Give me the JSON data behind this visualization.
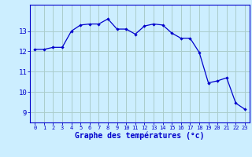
{
  "hours": [
    0,
    1,
    2,
    3,
    4,
    5,
    6,
    7,
    8,
    9,
    10,
    11,
    12,
    13,
    14,
    15,
    16,
    17,
    18,
    19,
    20,
    21,
    22,
    23
  ],
  "temps": [
    12.1,
    12.1,
    12.2,
    12.2,
    13.0,
    13.3,
    13.35,
    13.35,
    13.6,
    13.1,
    13.1,
    12.85,
    13.25,
    13.35,
    13.3,
    12.9,
    12.65,
    12.65,
    11.95,
    10.45,
    10.55,
    10.7,
    9.45,
    9.15
  ],
  "line_color": "#0000cc",
  "marker": "D",
  "marker_size": 2.2,
  "bg_color": "#cceeff",
  "grid_color": "#aacccc",
  "xlabel": "Graphe des températures (°c)",
  "xlabel_color": "#0000cc",
  "ylabel_ticks": [
    9,
    10,
    11,
    12,
    13
  ],
  "ylim": [
    8.5,
    14.3
  ],
  "xlim": [
    -0.5,
    23.5
  ],
  "xtick_labels": [
    "0",
    "1",
    "2",
    "3",
    "4",
    "5",
    "6",
    "7",
    "8",
    "9",
    "10",
    "11",
    "12",
    "13",
    "14",
    "15",
    "16",
    "17",
    "18",
    "19",
    "20",
    "21",
    "22",
    "23"
  ],
  "tick_color": "#0000cc",
  "axis_color": "#0000cc"
}
